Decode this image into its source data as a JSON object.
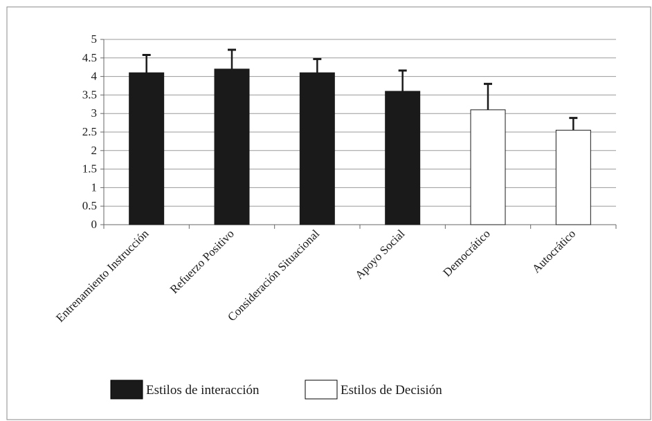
{
  "chart_data": {
    "type": "bar",
    "title": "",
    "xlabel": "",
    "ylabel": "",
    "ylim": [
      0,
      5
    ],
    "yticks": [
      0,
      0.5,
      1,
      1.5,
      2,
      2.5,
      3,
      3.5,
      4,
      4.5,
      5
    ],
    "ytick_labels": [
      "0",
      "0.5",
      "1",
      "1.5",
      "2",
      "2.5",
      "3",
      "3.5",
      "4",
      "4.5",
      "5"
    ],
    "grid": true,
    "legend_position": "bottom",
    "categories": [
      "Entrenamiento Instrucción",
      "Refuerzo Positivo",
      "Consideración Situacional",
      "Apoyo Social",
      "Democrático",
      "Autocrático"
    ],
    "values": [
      4.1,
      4.2,
      4.1,
      3.6,
      3.1,
      2.55
    ],
    "error_upper": [
      0.48,
      0.52,
      0.37,
      0.56,
      0.7,
      0.33
    ],
    "groups": [
      0,
      0,
      0,
      0,
      1,
      1
    ],
    "series": [
      {
        "name": "Estilos de interacción",
        "color": "#1a1a1a"
      },
      {
        "name": "Estilos de Decisión",
        "color": "#ffffff"
      }
    ]
  }
}
